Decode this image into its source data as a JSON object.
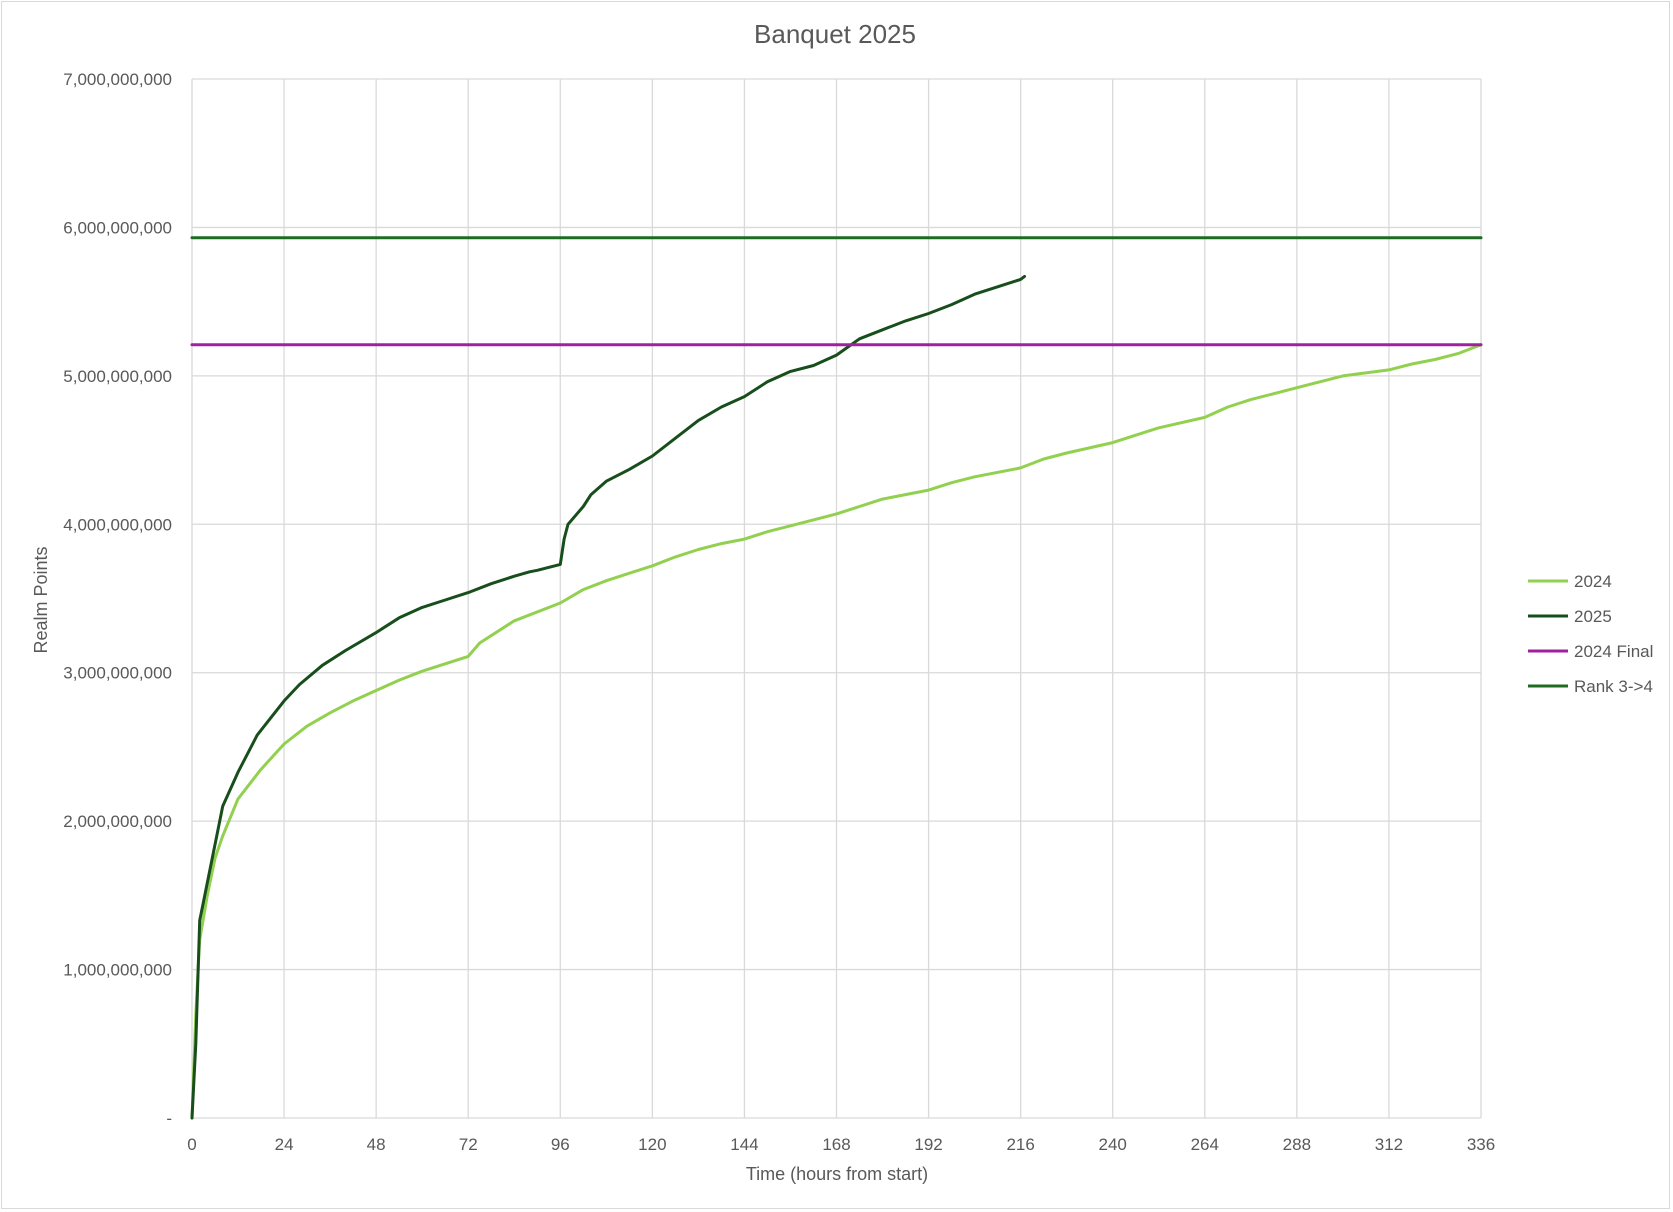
{
  "chart_data": {
    "type": "line",
    "title": "Banquet 2025",
    "xlabel": "Time (hours from start)",
    "ylabel": "Realm Points",
    "xlim": [
      0,
      336
    ],
    "ylim": [
      0,
      7000000000
    ],
    "x_ticks": [
      "0",
      "24",
      "48",
      "72",
      "96",
      "120",
      "144",
      "168",
      "192",
      "216",
      "240",
      "264",
      "288",
      "312",
      "336"
    ],
    "y_ticks": [
      "-",
      "1,000,000,000",
      "2,000,000,000",
      "3,000,000,000",
      "4,000,000,000",
      "5,000,000,000",
      "6,000,000,000",
      "7,000,000,000"
    ],
    "grid": true,
    "legend_position": "right",
    "series": [
      {
        "name": "2024",
        "color": "#92d050",
        "points": [
          [
            0,
            0
          ],
          [
            1,
            700000000
          ],
          [
            2,
            1200000000
          ],
          [
            4,
            1500000000
          ],
          [
            6,
            1750000000
          ],
          [
            8,
            1900000000
          ],
          [
            12,
            2150000000
          ],
          [
            18,
            2350000000
          ],
          [
            24,
            2520000000
          ],
          [
            30,
            2640000000
          ],
          [
            36,
            2730000000
          ],
          [
            42,
            2810000000
          ],
          [
            48,
            2880000000
          ],
          [
            54,
            2950000000
          ],
          [
            60,
            3010000000
          ],
          [
            66,
            3060000000
          ],
          [
            72,
            3110000000
          ],
          [
            75,
            3200000000
          ],
          [
            84,
            3350000000
          ],
          [
            96,
            3470000000
          ],
          [
            102,
            3560000000
          ],
          [
            108,
            3620000000
          ],
          [
            120,
            3720000000
          ],
          [
            126,
            3780000000
          ],
          [
            132,
            3830000000
          ],
          [
            138,
            3870000000
          ],
          [
            144,
            3900000000
          ],
          [
            150,
            3950000000
          ],
          [
            156,
            3990000000
          ],
          [
            168,
            4070000000
          ],
          [
            174,
            4120000000
          ],
          [
            180,
            4170000000
          ],
          [
            192,
            4230000000
          ],
          [
            198,
            4280000000
          ],
          [
            204,
            4320000000
          ],
          [
            216,
            4380000000
          ],
          [
            222,
            4440000000
          ],
          [
            228,
            4480000000
          ],
          [
            240,
            4550000000
          ],
          [
            246,
            4600000000
          ],
          [
            252,
            4650000000
          ],
          [
            264,
            4720000000
          ],
          [
            270,
            4790000000
          ],
          [
            276,
            4840000000
          ],
          [
            288,
            4920000000
          ],
          [
            294,
            4960000000
          ],
          [
            300,
            5000000000
          ],
          [
            312,
            5040000000
          ],
          [
            318,
            5080000000
          ],
          [
            324,
            5110000000
          ],
          [
            330,
            5150000000
          ],
          [
            336,
            5210000000
          ]
        ]
      },
      {
        "name": "2025",
        "color": "#184e1c",
        "points": [
          [
            0,
            0
          ],
          [
            1,
            500000000
          ],
          [
            2,
            1330000000
          ],
          [
            8,
            2100000000
          ],
          [
            12,
            2330000000
          ],
          [
            17,
            2580000000
          ],
          [
            24,
            2810000000
          ],
          [
            28,
            2920000000
          ],
          [
            34,
            3050000000
          ],
          [
            40,
            3150000000
          ],
          [
            48,
            3270000000
          ],
          [
            54,
            3370000000
          ],
          [
            60,
            3440000000
          ],
          [
            66,
            3490000000
          ],
          [
            72,
            3540000000
          ],
          [
            78,
            3600000000
          ],
          [
            84,
            3650000000
          ],
          [
            88,
            3680000000
          ],
          [
            90,
            3690000000
          ],
          [
            96,
            3730000000
          ],
          [
            97,
            3900000000
          ],
          [
            98,
            4000000000
          ],
          [
            102,
            4120000000
          ],
          [
            104,
            4200000000
          ],
          [
            108,
            4290000000
          ],
          [
            114,
            4370000000
          ],
          [
            120,
            4460000000
          ],
          [
            126,
            4580000000
          ],
          [
            132,
            4700000000
          ],
          [
            138,
            4790000000
          ],
          [
            144,
            4860000000
          ],
          [
            150,
            4960000000
          ],
          [
            156,
            5030000000
          ],
          [
            162,
            5070000000
          ],
          [
            168,
            5140000000
          ],
          [
            174,
            5250000000
          ],
          [
            180,
            5310000000
          ],
          [
            186,
            5370000000
          ],
          [
            192,
            5420000000
          ],
          [
            198,
            5480000000
          ],
          [
            204,
            5550000000
          ],
          [
            210,
            5600000000
          ],
          [
            216,
            5650000000
          ],
          [
            217,
            5670000000
          ]
        ]
      },
      {
        "name": "2024 Final",
        "color": "#a020a0",
        "points": [
          [
            0,
            5210000000
          ],
          [
            336,
            5210000000
          ]
        ]
      },
      {
        "name": "Rank 3->4",
        "color": "#1e6b22",
        "points": [
          [
            0,
            5930000000
          ],
          [
            336,
            5930000000
          ]
        ]
      }
    ]
  }
}
